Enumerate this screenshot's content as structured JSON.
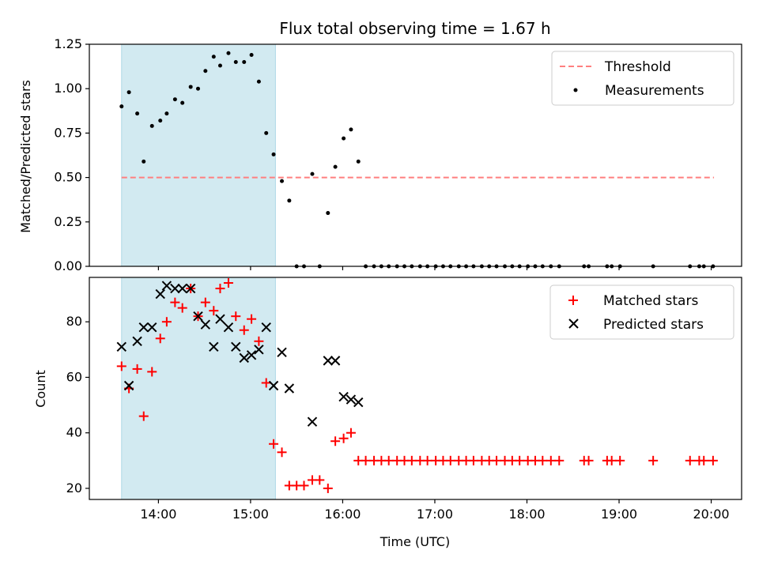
{
  "chart_data": [
    {
      "type": "scatter",
      "title": "Flux total observing time = 1.67 h",
      "xlabel": "",
      "ylabel": "Matched/Predicted stars",
      "ylim": [
        0,
        1.25
      ],
      "yticks": [
        0.0,
        0.25,
        0.5,
        0.75,
        1.0,
        1.25
      ],
      "ytick_labels": [
        "0.00",
        "0.25",
        "0.50",
        "0.75",
        "1.00",
        "1.25"
      ],
      "xlim_hours": [
        13.25,
        20.33
      ],
      "xticks_hours": [
        14,
        15,
        16,
        17,
        18,
        19,
        20
      ],
      "xtick_labels": [
        "14:00",
        "15:00",
        "16:00",
        "17:00",
        "18:00",
        "19:00",
        "20:00"
      ],
      "shaded_interval_hours": [
        13.6,
        15.27
      ],
      "shade_color": "#add8e6",
      "threshold": {
        "name": "Threshold",
        "value": 0.5,
        "x_hours": [
          13.6,
          20.03
        ],
        "color": "#ff7f7f"
      },
      "legend": {
        "position": "upper right",
        "entries": [
          "Threshold",
          "Measurements"
        ]
      },
      "series": [
        {
          "name": "Measurements",
          "color": "#000000",
          "x_hours": [
            13.6,
            13.68,
            13.77,
            13.84,
            13.93,
            14.02,
            14.09,
            14.18,
            14.26,
            14.35,
            14.43,
            14.51,
            14.6,
            14.67,
            14.76,
            14.84,
            14.93,
            15.01,
            15.09,
            15.17,
            15.25,
            15.34,
            15.42,
            15.5,
            15.58,
            15.67,
            15.75,
            15.84,
            15.92,
            16.01,
            16.09,
            16.17,
            16.25,
            16.34,
            16.42,
            16.5,
            16.59,
            16.67,
            16.75,
            16.84,
            16.92,
            17.01,
            17.09,
            17.17,
            17.26,
            17.34,
            17.42,
            17.51,
            17.59,
            17.67,
            17.76,
            17.84,
            17.92,
            18.01,
            18.09,
            18.17,
            18.26,
            18.35,
            18.62,
            18.67,
            18.87,
            18.92,
            19.01,
            19.37,
            19.77,
            19.87,
            19.92,
            20.02
          ],
          "y": [
            0.9,
            0.98,
            0.86,
            0.59,
            0.79,
            0.82,
            0.86,
            0.94,
            0.92,
            1.01,
            1.0,
            1.1,
            1.18,
            1.13,
            1.2,
            1.15,
            1.15,
            1.19,
            1.04,
            0.75,
            0.63,
            0.48,
            0.37,
            0.0,
            0.0,
            0.52,
            0.0,
            0.3,
            0.56,
            0.72,
            0.77,
            0.59,
            0.0,
            0.0,
            0.0,
            0.0,
            0.0,
            0.0,
            0.0,
            0.0,
            0.0,
            0.0,
            0.0,
            0.0,
            0.0,
            0.0,
            0.0,
            0.0,
            0.0,
            0.0,
            0.0,
            0.0,
            0.0,
            0.0,
            0.0,
            0.0,
            0.0,
            0.0,
            0.0,
            0.0,
            0.0,
            0.0,
            0.0,
            0.0,
            0.0,
            0.0,
            0.0,
            0.0
          ]
        }
      ]
    },
    {
      "type": "scatter",
      "title": "",
      "xlabel": "Time (UTC)",
      "ylabel": "Count",
      "ylim": [
        16,
        96
      ],
      "yticks": [
        20,
        40,
        60,
        80
      ],
      "ytick_labels": [
        "20",
        "40",
        "60",
        "80"
      ],
      "xlim_hours": [
        13.25,
        20.33
      ],
      "xticks_hours": [
        14,
        15,
        16,
        17,
        18,
        19,
        20
      ],
      "xtick_labels": [
        "14:00",
        "15:00",
        "16:00",
        "17:00",
        "18:00",
        "19:00",
        "20:00"
      ],
      "shaded_interval_hours": [
        13.6,
        15.27
      ],
      "shade_color": "#add8e6",
      "legend": {
        "position": "upper right",
        "entries": [
          "Matched stars",
          "Predicted stars"
        ]
      },
      "series": [
        {
          "name": "Matched stars",
          "marker": "plus",
          "color": "#ff0000",
          "x_hours": [
            13.6,
            13.68,
            13.77,
            13.84,
            13.93,
            14.02,
            14.09,
            14.18,
            14.26,
            14.35,
            14.43,
            14.51,
            14.6,
            14.67,
            14.76,
            14.84,
            14.93,
            15.01,
            15.09,
            15.17,
            15.25,
            15.34,
            15.42,
            15.5,
            15.58,
            15.67,
            15.75,
            15.84,
            15.92,
            16.01,
            16.09,
            16.17,
            16.25,
            16.34,
            16.42,
            16.5,
            16.59,
            16.67,
            16.75,
            16.84,
            16.92,
            17.01,
            17.09,
            17.17,
            17.26,
            17.34,
            17.42,
            17.51,
            17.59,
            17.67,
            17.76,
            17.84,
            17.92,
            18.01,
            18.09,
            18.17,
            18.26,
            18.35,
            18.62,
            18.67,
            18.87,
            18.92,
            19.01,
            19.37,
            19.77,
            19.87,
            19.92,
            20.02
          ],
          "y": [
            64,
            56,
            63,
            46,
            62,
            74,
            80,
            87,
            85,
            92,
            82,
            87,
            84,
            92,
            94,
            82,
            77,
            81,
            73,
            58,
            36,
            33,
            21,
            21,
            21,
            23,
            23,
            20,
            37,
            38,
            40,
            30,
            30,
            30,
            30,
            30,
            30,
            30,
            30,
            30,
            30,
            30,
            30,
            30,
            30,
            30,
            30,
            30,
            30,
            30,
            30,
            30,
            30,
            30,
            30,
            30,
            30,
            30,
            30,
            30,
            30,
            30,
            30,
            30,
            30,
            30,
            30,
            30
          ]
        },
        {
          "name": "Predicted stars",
          "marker": "x",
          "color": "#000000",
          "x_hours": [
            13.6,
            13.68,
            13.77,
            13.84,
            13.93,
            14.02,
            14.09,
            14.18,
            14.26,
            14.35,
            14.43,
            14.51,
            14.6,
            14.67,
            14.76,
            14.84,
            14.93,
            15.01,
            15.09,
            15.17,
            15.25,
            15.34,
            15.42,
            15.67,
            15.84,
            15.92,
            16.01,
            16.09,
            16.17
          ],
          "y": [
            71,
            57,
            73,
            78,
            78,
            90,
            93,
            92,
            92,
            92,
            82,
            79,
            71,
            81,
            78,
            71,
            67,
            68,
            70,
            78,
            57,
            69,
            56,
            44,
            66,
            66,
            53,
            52,
            51
          ]
        }
      ]
    }
  ]
}
